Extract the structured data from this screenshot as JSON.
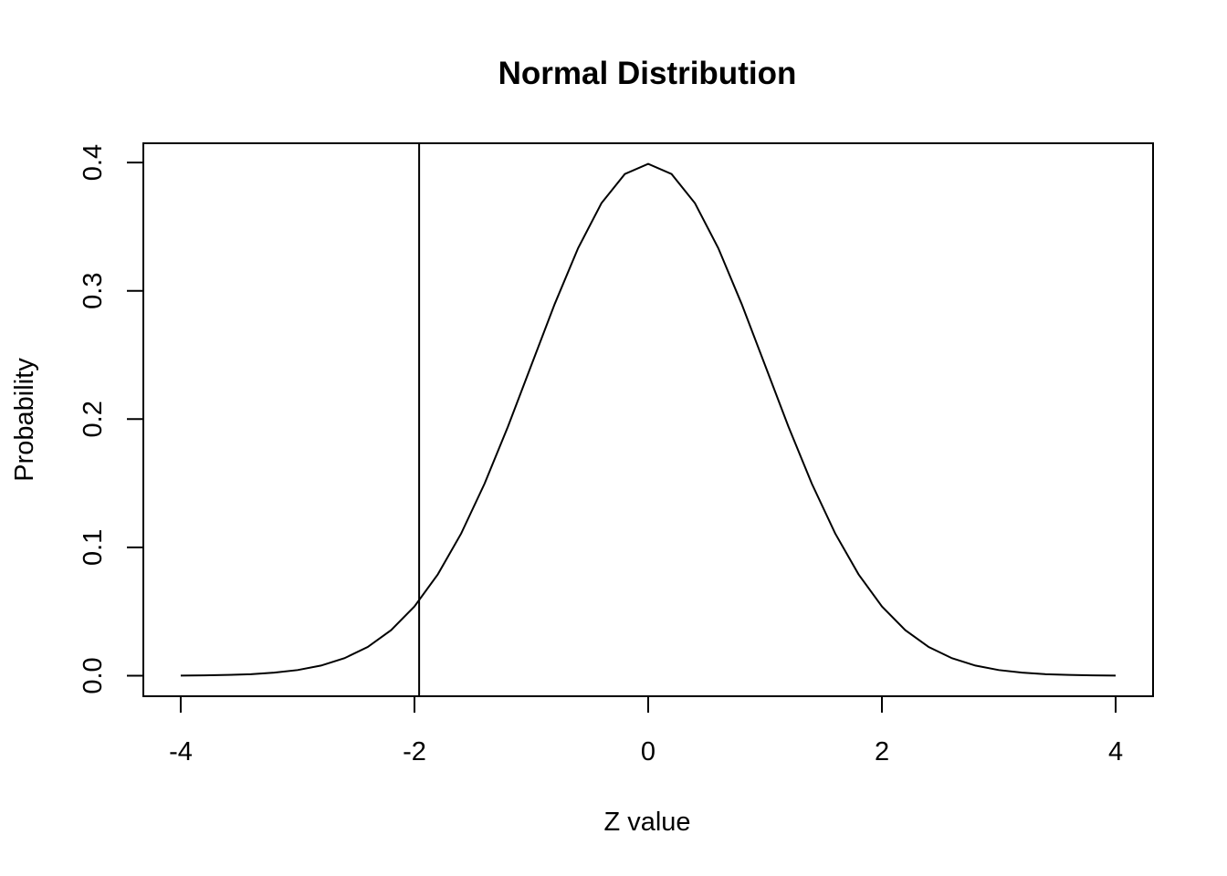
{
  "chart_data": {
    "type": "line",
    "title": "Normal Distribution",
    "xlabel": "Z value",
    "ylabel": "Probability",
    "xlim": [
      -4.32,
      4.32
    ],
    "ylim": [
      -0.016,
      0.415
    ],
    "x_ticks": [
      -4,
      -2,
      0,
      2,
      4
    ],
    "x_tick_labels": [
      "-4",
      "-2",
      "0",
      "2",
      "4"
    ],
    "y_ticks": [
      0.0,
      0.1,
      0.2,
      0.3,
      0.4
    ],
    "y_tick_labels": [
      "0.0",
      "0.1",
      "0.2",
      "0.3",
      "0.4"
    ],
    "grid": false,
    "legend": "none",
    "series": [
      {
        "x": [
          -4.0,
          -3.8,
          -3.6,
          -3.4,
          -3.2,
          -3.0,
          -2.8,
          -2.6,
          -2.4,
          -2.2,
          -2.0,
          -1.8,
          -1.6,
          -1.4,
          -1.2,
          -1.0,
          -0.8,
          -0.6,
          -0.4,
          -0.2,
          0.0,
          0.2,
          0.4,
          0.6,
          0.8,
          1.0,
          1.2,
          1.4,
          1.6,
          1.8,
          2.0,
          2.2,
          2.4,
          2.6,
          2.8,
          3.0,
          3.2,
          3.4,
          3.6,
          3.8,
          4.0
        ],
        "values": [
          0.0001,
          0.0003,
          0.0006,
          0.0012,
          0.0024,
          0.0044,
          0.0079,
          0.0136,
          0.0224,
          0.0355,
          0.054,
          0.079,
          0.1109,
          0.1497,
          0.1942,
          0.242,
          0.2897,
          0.3332,
          0.3683,
          0.391,
          0.3989,
          0.391,
          0.3683,
          0.3332,
          0.2897,
          0.242,
          0.1942,
          0.1497,
          0.1109,
          0.079,
          0.054,
          0.0355,
          0.0224,
          0.0136,
          0.0079,
          0.0044,
          0.0024,
          0.0012,
          0.0006,
          0.0003,
          0.0001
        ]
      }
    ],
    "vertical_lines": [
      -1.96
    ]
  }
}
